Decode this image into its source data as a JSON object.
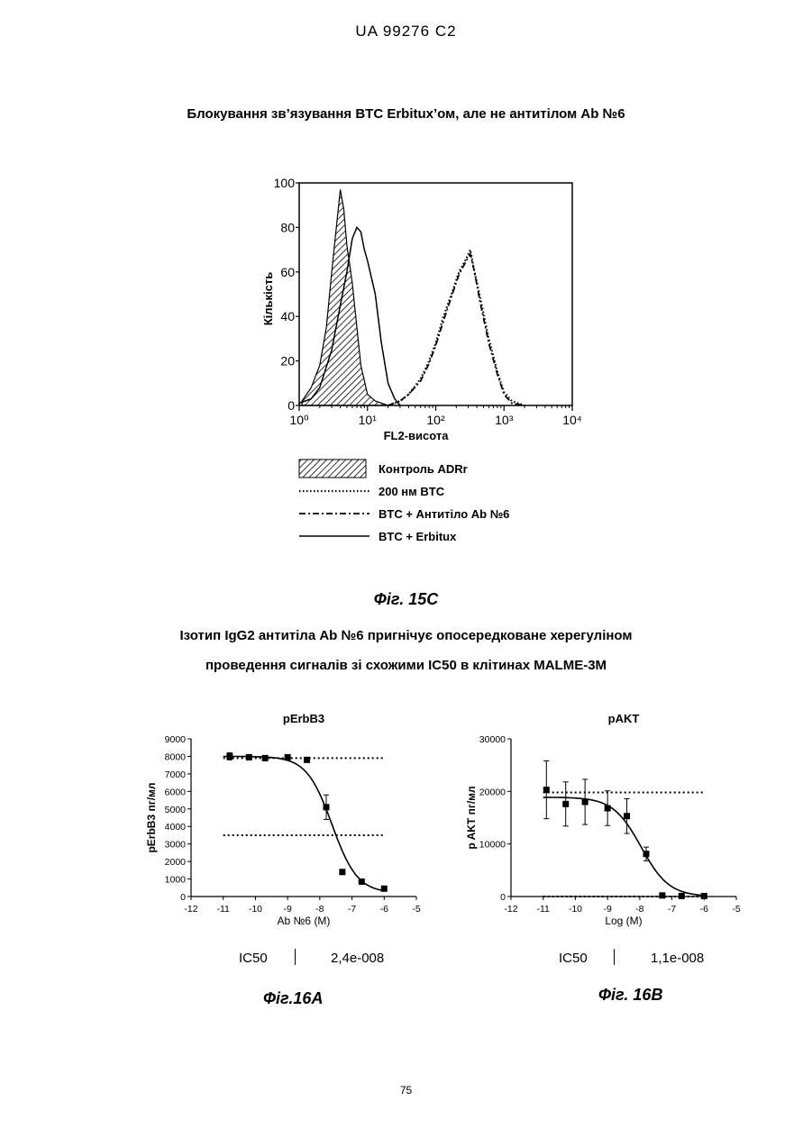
{
  "header": "UA   99276   C2",
  "fig15c": {
    "title": "Блокування зв’язування BTC Erbitux’ом, але не антитілом Ab №6",
    "caption": "Фіг. 15C"
  },
  "fig16_title_line1": "Ізотип IgG2 антитіла Ab №6 пригнічує опосередковане херегуліном",
  "fig16_title_line2": "проведення сигналів зі схожими IC50 в клітинах MALME-3M",
  "fig16a": {
    "ic50_label": "IC50",
    "ic50_value": "2,4e-008",
    "caption": "Фіг.16A"
  },
  "fig16b": {
    "ic50_label": "IC50",
    "ic50_value": "1,1e-008",
    "caption": "Фіг. 16B"
  },
  "page_number": "75",
  "chart_data": [
    {
      "type": "line",
      "title": "",
      "xlabel": "FL2-висота",
      "ylabel": "Кількість",
      "xscale": "log",
      "xlim": [
        1,
        10000
      ],
      "ylim": [
        0,
        100
      ],
      "x_tick_labels": [
        "10⁰",
        "10¹",
        "10²",
        "10³",
        "10⁴"
      ],
      "y_tick_labels": [
        "0",
        "20",
        "40",
        "60",
        "80",
        "100"
      ],
      "legend_position": "below",
      "series": [
        {
          "name": "Контроль ADRr",
          "style": "hatched-area",
          "x": [
            1.1,
            1.5,
            2.0,
            2.5,
            3.0,
            3.5,
            4.0,
            4.5,
            5.0,
            6.0,
            7.0,
            8.0,
            10.0,
            13.0,
            20.0
          ],
          "y": [
            2,
            8,
            18,
            35,
            60,
            80,
            97,
            88,
            72,
            55,
            35,
            18,
            5,
            2,
            0
          ]
        },
        {
          "name": "200 нм BTC",
          "style": "dotted",
          "x": [
            20,
            30,
            40,
            60,
            80,
            100,
            130,
            170,
            220,
            280,
            320,
            370,
            450,
            600,
            800,
            1000,
            1300,
            2000
          ],
          "y": [
            0,
            2,
            5,
            12,
            20,
            28,
            40,
            50,
            60,
            66,
            70,
            60,
            48,
            30,
            15,
            6,
            2,
            0
          ]
        },
        {
          "name": "BTC + Антитіло Ab №6",
          "style": "dash-dot",
          "x": [
            20,
            30,
            40,
            60,
            80,
            100,
            130,
            170,
            220,
            280,
            320,
            370,
            450,
            600,
            800,
            1000,
            1300,
            2000
          ],
          "y": [
            0,
            2,
            5,
            11,
            19,
            27,
            38,
            49,
            59,
            65,
            68,
            60,
            46,
            28,
            14,
            5,
            1,
            0
          ]
        },
        {
          "name": "BTC + Erbitux",
          "style": "solid",
          "x": [
            1.0,
            1.5,
            2.0,
            3.0,
            4.0,
            5.0,
            6.0,
            7.0,
            8.0,
            9.0,
            10.0,
            13.0,
            16.0,
            20.0,
            25.0,
            30.0
          ],
          "y": [
            1,
            3,
            8,
            25,
            45,
            60,
            75,
            80,
            78,
            70,
            65,
            50,
            28,
            10,
            3,
            0
          ]
        }
      ]
    },
    {
      "type": "scatter",
      "title": "pErbB3",
      "xlabel": "Ab №6 (M)",
      "ylabel": "pErbB3 пг/мл",
      "xlim": [
        -12,
        -5
      ],
      "ylim": [
        0,
        9000
      ],
      "x_ticks": [
        -12,
        -11,
        -10,
        -9,
        -8,
        -7,
        -6,
        -5
      ],
      "y_ticks": [
        0,
        1000,
        2000,
        3000,
        4000,
        5000,
        6000,
        7000,
        8000,
        9000
      ],
      "points": [
        {
          "x": -10.8,
          "y": 8000,
          "err": 200
        },
        {
          "x": -10.2,
          "y": 7950,
          "err": 150
        },
        {
          "x": -9.7,
          "y": 7900,
          "err": 150
        },
        {
          "x": -9.0,
          "y": 7950,
          "err": 100
        },
        {
          "x": -8.4,
          "y": 7800,
          "err": 100
        },
        {
          "x": -7.8,
          "y": 5100,
          "err": 700
        },
        {
          "x": -7.3,
          "y": 1400,
          "err": 100
        },
        {
          "x": -6.7,
          "y": 850,
          "err": 100
        },
        {
          "x": -6.0,
          "y": 450,
          "err": 80
        }
      ],
      "fit": {
        "top": 8000,
        "bottom": 200,
        "log_ic50": -7.62,
        "hill": 1.1
      },
      "reference_lines": [
        7900,
        3500
      ]
    },
    {
      "type": "scatter",
      "title": "pAKT",
      "xlabel": "Log (M)",
      "ylabel": "p AKT пг/мл",
      "xlim": [
        -12,
        -5
      ],
      "ylim": [
        0,
        30000
      ],
      "x_ticks": [
        -12,
        -11,
        -10,
        -9,
        -8,
        -7,
        -6,
        -5
      ],
      "y_ticks": [
        0,
        10000,
        20000,
        30000
      ],
      "points": [
        {
          "x": -10.9,
          "y": 20300,
          "err": 5500
        },
        {
          "x": -10.3,
          "y": 17600,
          "err": 4200
        },
        {
          "x": -9.7,
          "y": 18000,
          "err": 4300
        },
        {
          "x": -9.0,
          "y": 16800,
          "err": 3300
        },
        {
          "x": -8.4,
          "y": 15300,
          "err": 3300
        },
        {
          "x": -7.8,
          "y": 8100,
          "err": 1300
        },
        {
          "x": -7.3,
          "y": 200,
          "err": 100
        },
        {
          "x": -6.7,
          "y": 100,
          "err": 100
        },
        {
          "x": -6.0,
          "y": 100,
          "err": 100
        }
      ],
      "fit": {
        "top": 18900,
        "bottom": 0,
        "log_ic50": -7.96,
        "hill": 1.0
      },
      "reference_lines": [
        19800,
        0
      ]
    }
  ]
}
